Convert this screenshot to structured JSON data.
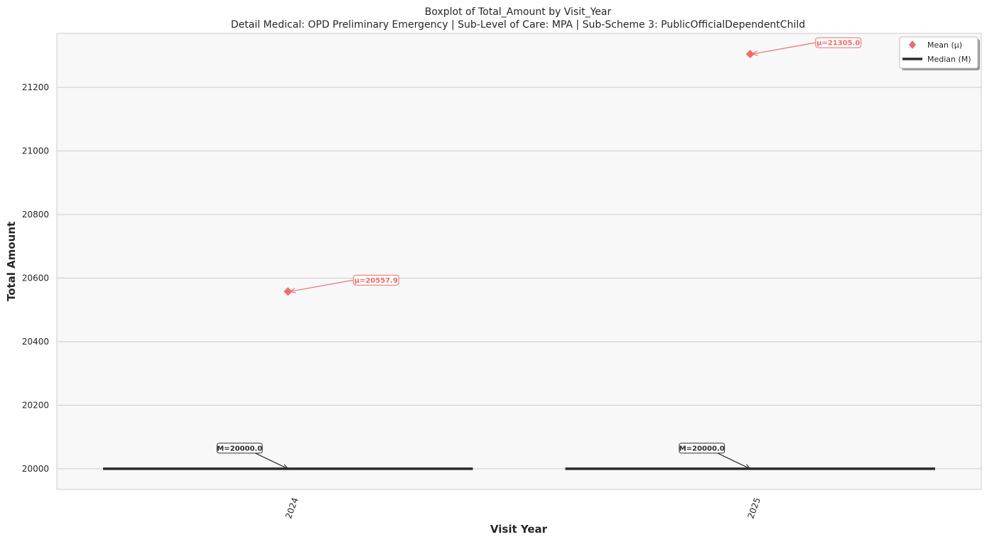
{
  "chart_data": {
    "type": "box",
    "title": "Boxplot of Total_Amount by Visit_Year",
    "subtitle": "Detail Medical: OPD Preliminary Emergency | Sub-Level of Care: MPA | Sub-Scheme 3: PublicOfficialDependentChild",
    "xlabel": "Visit Year",
    "ylabel": "Total Amount",
    "categories": [
      "2024",
      "2025"
    ],
    "ylim": [
      19935,
      21370
    ],
    "yticks": [
      20000,
      20200,
      20400,
      20600,
      20800,
      21000,
      21200
    ],
    "grid": "horizontal",
    "legend_position": "top-right",
    "series": [
      {
        "name": "Mean (μ)",
        "values": [
          20557.9,
          21305.0
        ],
        "labels": [
          "μ=20557.9",
          "μ=21305.0"
        ],
        "color": "#f26b6b",
        "marker": "diamond"
      },
      {
        "name": "Median (M)",
        "values": [
          20000.0,
          20000.0
        ],
        "labels": [
          "M=20000.0",
          "M=20000.0"
        ],
        "color": "#2b2b2b"
      }
    ]
  },
  "colors": {
    "plot_background": "#f8f8f8",
    "grid": "#cccccc",
    "mean": "#f26b6b",
    "median": "#2b2b2b"
  }
}
